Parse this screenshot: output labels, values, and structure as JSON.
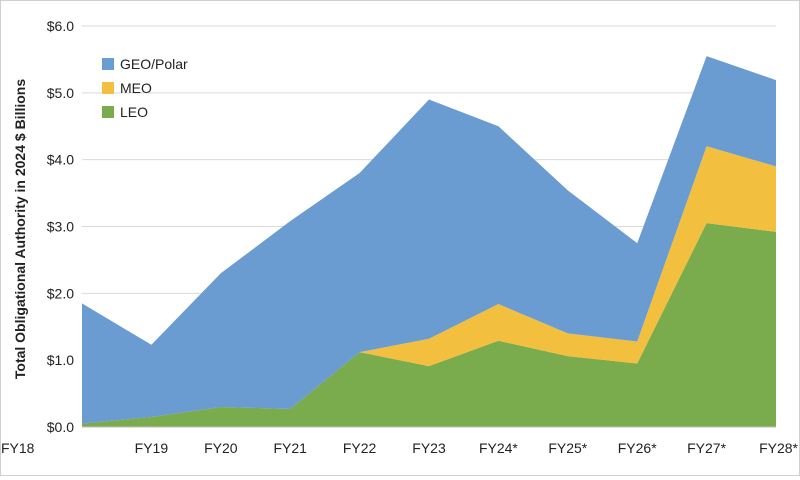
{
  "chart_data": {
    "type": "area",
    "stacked": true,
    "title": "",
    "xlabel": "",
    "ylabel": "Total Obligational Authority in 2024 $ Billions",
    "ylim": [
      0,
      6
    ],
    "yticks": [
      "$0.0",
      "$1.0",
      "$2.0",
      "$3.0",
      "$4.0",
      "$5.0",
      "$6.0"
    ],
    "categories": [
      "FY18",
      "FY19",
      "FY20",
      "FY21",
      "FY22",
      "FY23",
      "FY24*",
      "FY25*",
      "FY26*",
      "FY27*",
      "FY28*"
    ],
    "grid": "horizontal",
    "legend_position": "top-left",
    "series": [
      {
        "name": "LEO",
        "color": "#7aab4c",
        "values": [
          0.05,
          0.15,
          0.3,
          0.27,
          1.12,
          0.91,
          1.29,
          1.06,
          0.95,
          3.05,
          2.92
        ]
      },
      {
        "name": "MEO",
        "color": "#f2bf3f",
        "values": [
          0.0,
          0.0,
          0.0,
          0.0,
          0.0,
          0.41,
          0.55,
          0.34,
          0.33,
          1.15,
          0.98
        ]
      },
      {
        "name": "GEO/Polar",
        "color": "#6a9bd1",
        "values": [
          1.8,
          1.08,
          2.0,
          2.81,
          2.68,
          3.58,
          2.66,
          2.14,
          1.47,
          1.35,
          1.29
        ]
      }
    ],
    "legend": [
      "GEO/Polar",
      "MEO",
      "LEO"
    ]
  }
}
